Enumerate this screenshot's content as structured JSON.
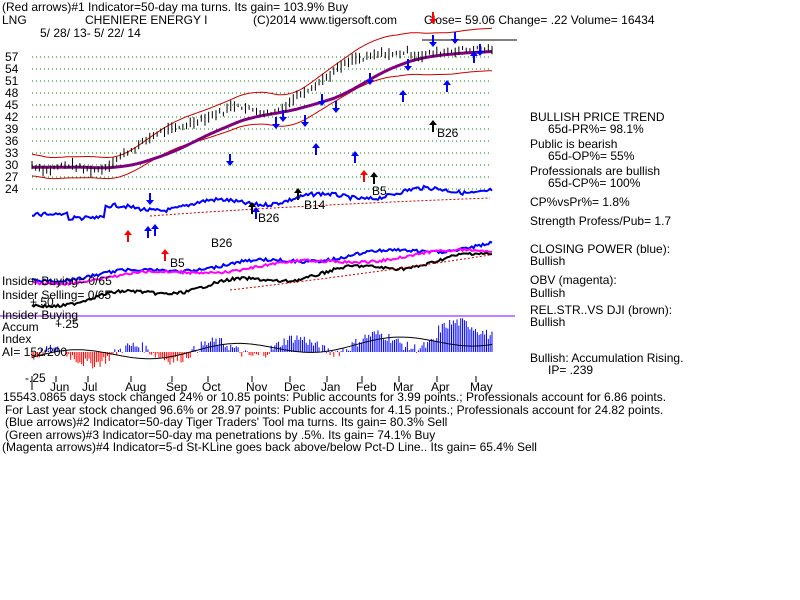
{
  "header": {
    "line1": "(Red arrows)#1 Indicator=50-day ma turns. Its gain= 103.9% Buy",
    "ticker": "LNG",
    "company": "CHENIERE ENERGY I",
    "copyright": "(C)2014 www.tigersoft.com",
    "quote": "Close= 59.06  Change= .22 Volume= 16434",
    "date_range": "5/ 28/ 13- 5/ 22/ 14"
  },
  "colors": {
    "price": "#000000",
    "ma50": "#800080",
    "band": "#cc0000",
    "grid": "#008000",
    "closing_power": "#0000ff",
    "obv": "#ff00ff",
    "relstr": "#8b4513",
    "accum_pos": "#0000ff",
    "accum_neg": "#ff0000",
    "arrow_red": "#ff0000",
    "arrow_blue": "#0000ff",
    "arrow_green": "#009000"
  },
  "chart_data": {
    "type": "line",
    "title": "CHENIERE ENERGY I",
    "y_ticks": [
      "57",
      "54",
      "51",
      "48",
      "45",
      "42",
      "39",
      "36",
      "33",
      "30",
      "27",
      "24"
    ],
    "ylim": [
      22,
      61
    ],
    "x_months": [
      "Jun",
      "Jul",
      "Aug",
      "Sep",
      "Oct",
      "Nov",
      "Dec",
      "Jan",
      "Feb",
      "Mar",
      "Apr",
      "May"
    ],
    "series": [
      {
        "name": "Price",
        "x": [
          0,
          4,
          8,
          12,
          16,
          20,
          24,
          28,
          32,
          36,
          40,
          44,
          48,
          52,
          56,
          60,
          64,
          68,
          72,
          76,
          80,
          84,
          88,
          92,
          96,
          100,
          104,
          108,
          112,
          116,
          120,
          124,
          128,
          132,
          136,
          140,
          144,
          148,
          152,
          156,
          160,
          164,
          168,
          172,
          176,
          180,
          184,
          188,
          192,
          196,
          200,
          204,
          208,
          212,
          216,
          220,
          224,
          228,
          232,
          236,
          240,
          244,
          248,
          250
        ],
        "y": [
          30.0,
          29.4,
          28.6,
          29.2,
          29.8,
          30.0,
          29.6,
          29.0,
          28.8,
          28.9,
          29.6,
          30.8,
          32.1,
          33.4,
          34.2,
          35.5,
          36.8,
          38.0,
          38.5,
          38.8,
          39.3,
          40.1,
          40.8,
          41.6,
          42.0,
          42.9,
          43.3,
          44.6,
          45.3,
          44.1,
          43.8,
          43.5,
          43.0,
          43.4,
          44.5,
          45.7,
          47.3,
          48.6,
          49.6,
          50.8,
          51.9,
          53.3,
          54.6,
          55.6,
          56.6,
          56.4,
          57.1,
          57.6,
          58.0,
          57.5,
          58.0,
          58.3,
          57.6,
          57.3,
          57.8,
          58.1,
          58.4,
          58.6,
          58.7,
          58.8,
          59.0,
          58.9,
          59.0,
          59.06
        ]
      },
      {
        "name": "50-day MA"
      }
    ]
  },
  "signals": {
    "b_labels": [
      "B26",
      "B5",
      "B14",
      "B26",
      "B5",
      "B26"
    ]
  },
  "lower_labels": {
    "insider_buying_1": "Insider Buying= 0/65",
    "insider_selling": "Insider Selling= 0/65",
    "plus50": "+.50",
    "insider_buying_2": "Insider Buying",
    "accum": "Accum",
    "plus25": "+.25",
    "index": "Index",
    "ai": "AI= 152/200",
    "minus25": "-.25"
  },
  "right_panel": {
    "bullish_trend": "BULLISH PRICE TREND",
    "pr": "65d-PR%= 98.1%",
    "public": "Public is bearish",
    "op": "65d-OP%= 55%",
    "pros": "Professionals are bullish",
    "cp": "65d-CP%= 100%",
    "cpvspr": "CP%vsPr%= 1.8%",
    "strength": "Strength Profess/Pub= 1.7",
    "closing_power": "CLOSING POWER (blue):",
    "cp_bull": "Bullish",
    "obv": "OBV (magenta):",
    "obv_bull": "Bullish",
    "relstr": "REL.STR..VS DJI (brown):",
    "relstr_bull": "Bullish",
    "accum_rising": "Bullish: Accumulation Rising.",
    "ip": "IP= .239"
  },
  "footer": {
    "line1": "15543.0865 days stock changed 24% or 10.85 points: Public accounts for 3.99 points.; Professionals account for 6.86 points.",
    "line2": "For Last year stock changed 96.6% or 28.97 points: Public accounts for 4.15 points.; Professionals account for 24.82 points.",
    "line3": "(Blue arrows)#2 Indicator=50-day Tiger Traders' Tool ma turns. Its gain= 80.3% Sell",
    "line4": "(Green arrows)#3 Indicator=50-day ma penetrations by .5%. Its gain= 74.1% Buy",
    "line5": "(Magenta arrows)#4 Indicator=5-d St-KLine goes back above/below Pct-D Line.. Its gain= 65.4% Sell"
  }
}
